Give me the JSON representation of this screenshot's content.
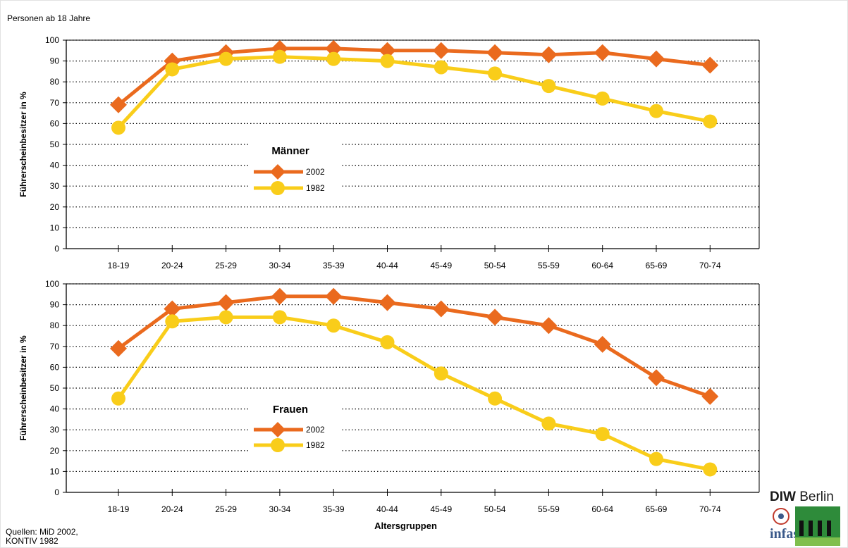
{
  "header": {
    "title": "Personen ab 18 Jahre"
  },
  "footer": {
    "source_line1": "Quellen: MiD 2002,",
    "source_line2": "KONTIV 1982"
  },
  "logos": {
    "diw_bold": "DIW",
    "diw_rest": "Berlin",
    "infas": "infas"
  },
  "colors": {
    "series_2002": "#ea6a1e",
    "series_1982": "#f9cd1a"
  },
  "chart_data": [
    {
      "type": "line",
      "panel": "Männer",
      "legend_title": "Männer",
      "ylabel": "Führerscheinbesitzer in %",
      "xlabel": "",
      "ylim": [
        0,
        100
      ],
      "yticks": [
        0,
        10,
        20,
        30,
        40,
        50,
        60,
        70,
        80,
        90,
        100
      ],
      "grid": "horizontal dotted",
      "legend_position": "center",
      "categories": [
        "18-19",
        "20-24",
        "25-29",
        "30-34",
        "35-39",
        "40-44",
        "45-49",
        "50-54",
        "55-59",
        "60-64",
        "65-69",
        "70-74"
      ],
      "series": [
        {
          "name": "2002",
          "marker": "diamond",
          "values": [
            69,
            90,
            94,
            96,
            96,
            95,
            95,
            94,
            93,
            94,
            91,
            88
          ]
        },
        {
          "name": "1982",
          "marker": "circle",
          "values": [
            58,
            86,
            91,
            92,
            91,
            90,
            87,
            84,
            78,
            72,
            66,
            61
          ]
        }
      ]
    },
    {
      "type": "line",
      "panel": "Frauen",
      "legend_title": "Frauen",
      "ylabel": "Führerscheinbesitzer in %",
      "xlabel": "Altersgruppen",
      "ylim": [
        0,
        100
      ],
      "yticks": [
        0,
        10,
        20,
        30,
        40,
        50,
        60,
        70,
        80,
        90,
        100
      ],
      "grid": "horizontal dotted",
      "legend_position": "center-left",
      "categories": [
        "18-19",
        "20-24",
        "25-29",
        "30-34",
        "35-39",
        "40-44",
        "45-49",
        "50-54",
        "55-59",
        "60-64",
        "65-69",
        "70-74"
      ],
      "series": [
        {
          "name": "2002",
          "marker": "diamond",
          "values": [
            69,
            88,
            91,
            94,
            94,
            91,
            88,
            84,
            80,
            71,
            55,
            46
          ]
        },
        {
          "name": "1982",
          "marker": "circle",
          "values": [
            45,
            82,
            84,
            84,
            80,
            72,
            57,
            45,
            33,
            28,
            16,
            11
          ]
        }
      ]
    }
  ]
}
